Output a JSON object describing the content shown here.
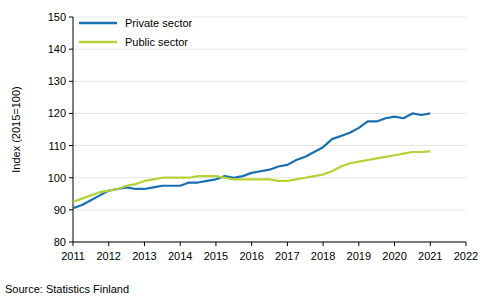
{
  "chart_data": {
    "type": "line",
    "y_label": "Index (2015=100)",
    "source": "Source: Statistics Finland",
    "x": [
      2011,
      2011.25,
      2011.5,
      2011.75,
      2012,
      2012.25,
      2012.5,
      2012.75,
      2013,
      2013.25,
      2013.5,
      2013.75,
      2014,
      2014.25,
      2014.5,
      2014.75,
      2015,
      2015.25,
      2015.5,
      2015.75,
      2016,
      2016.25,
      2016.5,
      2016.75,
      2017,
      2017.25,
      2017.5,
      2017.75,
      2018,
      2018.25,
      2018.5,
      2018.75,
      2019,
      2019.25,
      2019.5,
      2019.75,
      2020,
      2020.25,
      2020.5,
      2020.75,
      2021
    ],
    "series": [
      {
        "name": "Private sector",
        "color": "#1a6fb0",
        "values": [
          90.5,
          91.5,
          93,
          94.5,
          96,
          96.5,
          97,
          96.5,
          96.5,
          97,
          97.5,
          97.5,
          97.5,
          98.5,
          98.5,
          99,
          99.5,
          100.5,
          100,
          100.5,
          101.5,
          102,
          102.5,
          103.5,
          104,
          105.5,
          106.5,
          108,
          109.5,
          112,
          113,
          114,
          115.5,
          117.5,
          117.5,
          118.5,
          119,
          118.5,
          120,
          119.5,
          120
        ]
      },
      {
        "name": "Public sector",
        "color": "#b3d236",
        "values": [
          92.5,
          93.5,
          94.5,
          95.5,
          96,
          96.5,
          97.5,
          98,
          99,
          99.5,
          100,
          100,
          100,
          100,
          100.5,
          100.5,
          100.5,
          100,
          99.5,
          99.5,
          99.5,
          99.5,
          99.5,
          99,
          99,
          99.5,
          100,
          100.5,
          101,
          102,
          103.5,
          104.5,
          105,
          105.5,
          106,
          106.5,
          107,
          107.5,
          108,
          108,
          108.2
        ]
      }
    ],
    "xlim": [
      2011,
      2022
    ],
    "xticks": [
      2011,
      2012,
      2013,
      2014,
      2015,
      2016,
      2017,
      2018,
      2019,
      2020,
      2021,
      2022
    ],
    "ylim": [
      80,
      150
    ],
    "yticks": [
      80,
      90,
      100,
      110,
      120,
      130,
      140,
      150
    ],
    "grid": true,
    "legend": "top-left"
  }
}
